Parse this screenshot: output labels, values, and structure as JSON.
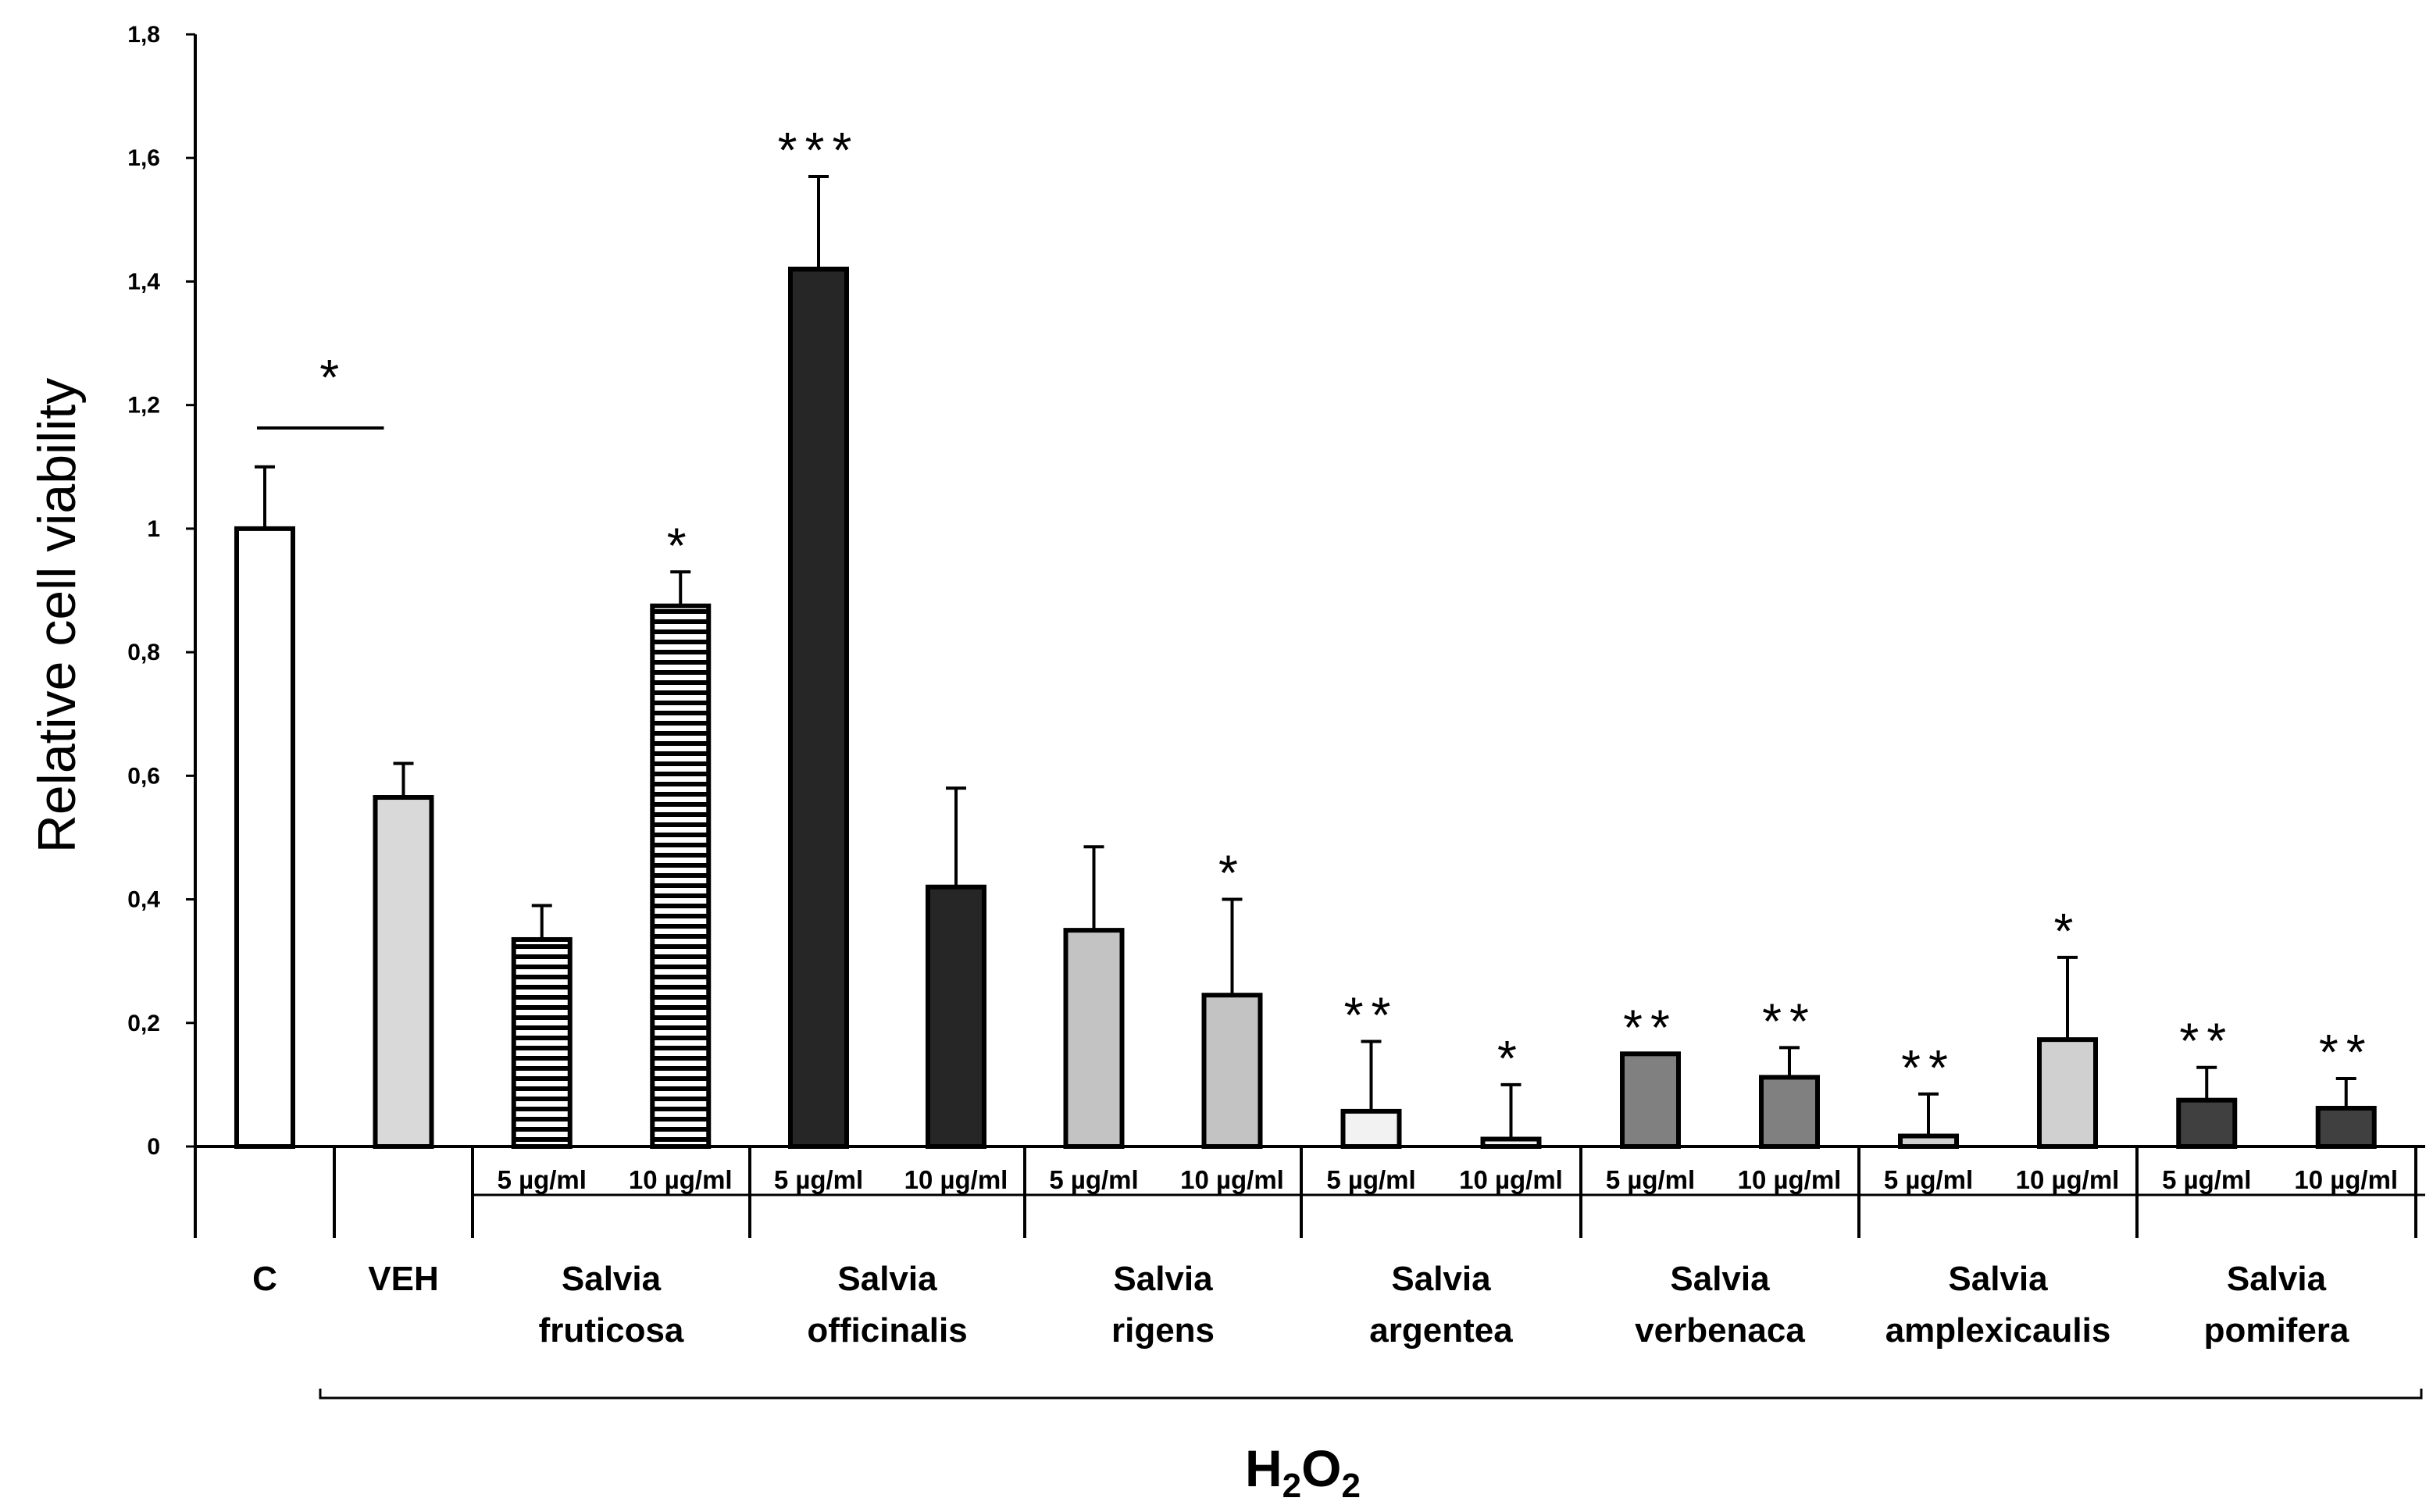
{
  "chart_data": {
    "type": "bar",
    "ylabel": "Relative cell viability",
    "ylim": [
      0,
      1.8
    ],
    "yticks": [
      {
        "value": 0,
        "label": "0"
      },
      {
        "value": 0.2,
        "label": "0,2"
      },
      {
        "value": 0.4,
        "label": "0,4"
      },
      {
        "value": 0.6,
        "label": "0,6"
      },
      {
        "value": 0.8,
        "label": "0,8"
      },
      {
        "value": 1.0,
        "label": "1"
      },
      {
        "value": 1.2,
        "label": "1,2"
      },
      {
        "value": 1.4,
        "label": "1,4"
      },
      {
        "value": 1.6,
        "label": "1,6"
      },
      {
        "value": 1.8,
        "label": "1,8"
      }
    ],
    "concentration_labels": [
      "5 µg/ml",
      "10 µg/ml"
    ],
    "treatment_label": "H2O2",
    "groups": [
      {
        "line1": "C",
        "line2": "",
        "bars": [
          {
            "value": 1.0,
            "error": 0.1,
            "sig": "",
            "color": "#ffffff",
            "pattern": "none"
          }
        ]
      },
      {
        "line1": "VEH",
        "line2": "",
        "bars": [
          {
            "value": 0.565,
            "error": 0.055,
            "sig": "",
            "color": "#d9d9d9",
            "pattern": "none"
          }
        ]
      },
      {
        "line1": "Salvia",
        "line2": "fruticosa",
        "bars": [
          {
            "value": 0.335,
            "error": 0.055,
            "sig": "",
            "color": "#ffffff",
            "pattern": "hstripe"
          },
          {
            "value": 0.875,
            "error": 0.055,
            "sig": "*",
            "color": "#ffffff",
            "pattern": "hstripe"
          }
        ]
      },
      {
        "line1": "Salvia",
        "line2": "officinalis",
        "bars": [
          {
            "value": 1.42,
            "error": 0.15,
            "sig": "***",
            "color": "#262626",
            "pattern": "none"
          },
          {
            "value": 0.42,
            "error": 0.16,
            "sig": "",
            "color": "#262626",
            "pattern": "none"
          }
        ]
      },
      {
        "line1": "Salvia",
        "line2": "rigens",
        "bars": [
          {
            "value": 0.35,
            "error": 0.135,
            "sig": "",
            "color": "#c3c3c3",
            "pattern": "none"
          },
          {
            "value": 0.245,
            "error": 0.155,
            "sig": "*",
            "color": "#c3c3c3",
            "pattern": "none"
          }
        ]
      },
      {
        "line1": "Salvia",
        "line2": "argentea",
        "bars": [
          {
            "value": 0.057,
            "error": 0.113,
            "sig": "**",
            "color": "#f2f2f2",
            "pattern": "none"
          },
          {
            "value": 0.012,
            "error": 0.088,
            "sig": "*",
            "color": "#f2f2f2",
            "pattern": "none"
          }
        ]
      },
      {
        "line1": "Salvia",
        "line2": "verbenaca",
        "bars": [
          {
            "value": 0.15,
            "error": 0,
            "sig": "**",
            "color": "#808080",
            "pattern": "none"
          },
          {
            "value": 0.112,
            "error": 0.048,
            "sig": "**",
            "color": "#808080",
            "pattern": "none"
          }
        ]
      },
      {
        "line1": "Salvia",
        "line2": "amplexicaulis",
        "bars": [
          {
            "value": 0.017,
            "error": 0.068,
            "sig": "**",
            "color": "#d0d0d0",
            "pattern": "none"
          },
          {
            "value": 0.173,
            "error": 0.133,
            "sig": "*",
            "color": "#d0d0d0",
            "pattern": "none"
          }
        ]
      },
      {
        "line1": "Salvia",
        "line2": "pomifera",
        "bars": [
          {
            "value": 0.075,
            "error": 0.053,
            "sig": "**",
            "color": "#404040",
            "pattern": "none"
          },
          {
            "value": 0.062,
            "error": 0.048,
            "sig": "**",
            "color": "#404040",
            "pattern": "none"
          }
        ]
      }
    ],
    "comparison": {
      "label": "*",
      "from_group": 0,
      "to_group": 1
    }
  }
}
